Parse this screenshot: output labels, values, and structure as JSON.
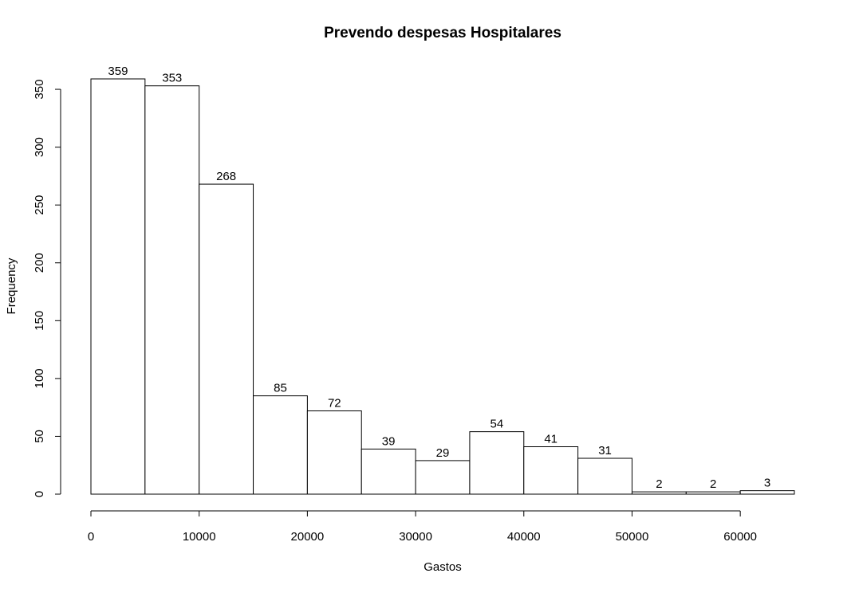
{
  "chart_data": {
    "type": "bar",
    "title": "Prevendo despesas Hospitalares",
    "xlabel": "Gastos",
    "ylabel": "Frequency",
    "bin_edges": [
      0,
      5000,
      10000,
      15000,
      20000,
      25000,
      30000,
      35000,
      40000,
      45000,
      50000,
      55000,
      60000,
      65000
    ],
    "values": [
      359,
      353,
      268,
      85,
      72,
      39,
      29,
      54,
      41,
      31,
      2,
      2,
      3
    ],
    "xlim": [
      0,
      65000
    ],
    "ylim": [
      0,
      359
    ],
    "x_ticks": [
      0,
      10000,
      20000,
      30000,
      40000,
      50000,
      60000
    ],
    "x_tick_labels": [
      "0",
      "10000",
      "20000",
      "30000",
      "40000",
      "50000",
      "60000"
    ],
    "y_ticks": [
      0,
      50,
      100,
      150,
      200,
      250,
      300,
      350
    ],
    "y_tick_labels": [
      "0",
      "50",
      "100",
      "150",
      "200",
      "250",
      "300",
      "350"
    ],
    "grid": false,
    "legend": "none"
  }
}
